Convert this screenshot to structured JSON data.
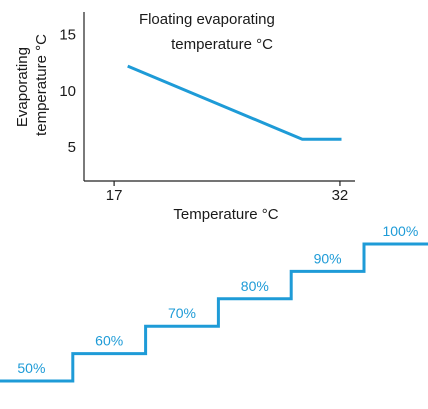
{
  "chart_data": [
    {
      "type": "line",
      "title": "Floating evaporating\ntemperature °C",
      "xlabel": "Temperature °C",
      "ylabel": "Evaporating\ntemperature °C",
      "x_ticks": [
        17,
        32
      ],
      "y_ticks": [
        5,
        10,
        15
      ],
      "xlim": [
        15,
        33
      ],
      "ylim": [
        2,
        17
      ],
      "series": [
        {
          "points": [
            {
              "x": 17.9,
              "y": 12.2
            },
            {
              "x": 29.5,
              "y": 5.7
            },
            {
              "x": 32.1,
              "y": 5.7
            }
          ],
          "color": "#1e9bd7"
        }
      ]
    },
    {
      "type": "step",
      "values": [
        50,
        60,
        70,
        80,
        90,
        100
      ],
      "labels": [
        "50%",
        "60%",
        "70%",
        "80%",
        "90%",
        "100%"
      ],
      "color": "#1e9bd7"
    }
  ]
}
